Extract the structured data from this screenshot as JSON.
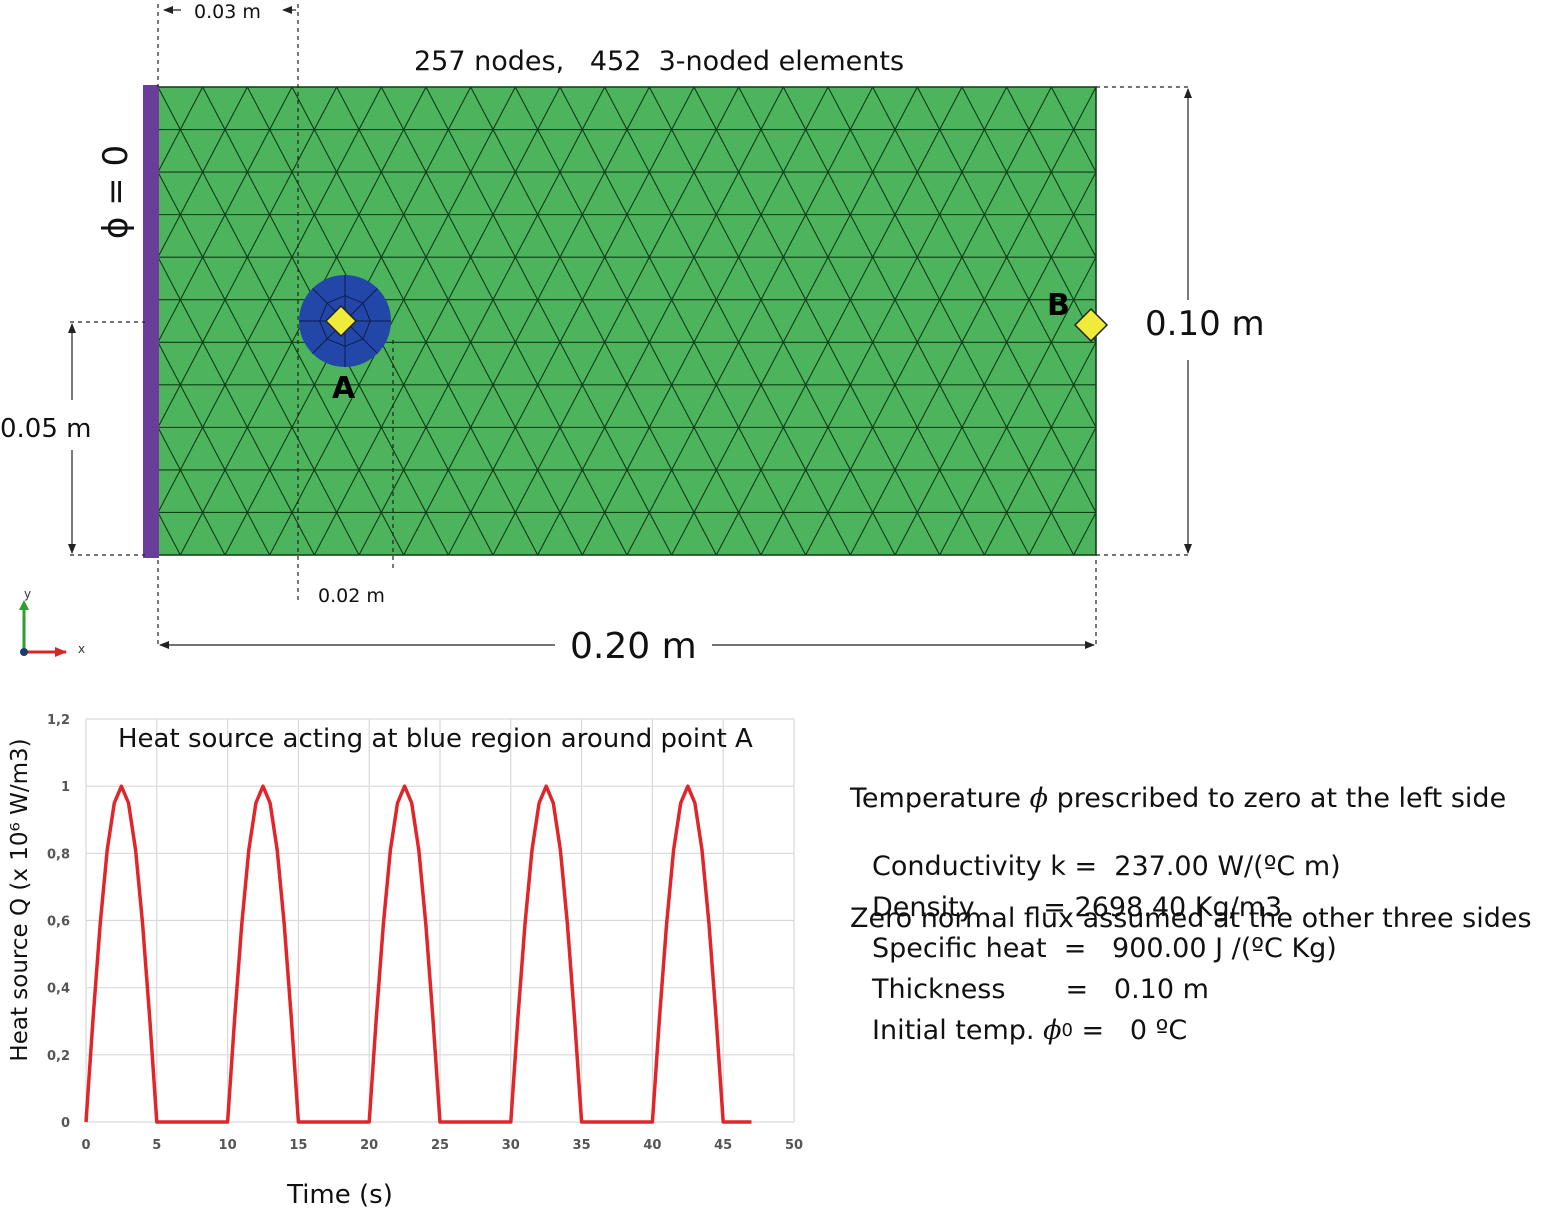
{
  "mesh_info": "257 nodes,   452  3-noded elements",
  "boundary_label": "ϕ = 0",
  "dimensions": {
    "top_offset": "0.03 m",
    "left_height": "0.05 m",
    "right_height": "0.10 m",
    "bottom_width": "0.20 m",
    "source_width": "0.02 m"
  },
  "points": {
    "a": "A",
    "b": "B"
  },
  "axes_triad": {
    "x": "x",
    "y": "y"
  },
  "colors": {
    "domain_fill": "#4db35c",
    "mesh_line": "#0d3d14",
    "boundary_bar": "#6a3d9a",
    "source_region": "#2347a8",
    "marker_fill": "#f0ea3a",
    "curve": "#e0262b",
    "grid": "#d9d9d9"
  },
  "notes": {
    "line1_pre": "Temperature ",
    "line1_sym": "ϕ",
    "line1_post": " prescribed to zero at the left side",
    "line2": "Zero normal flux assumed at the other three sides"
  },
  "properties": [
    {
      "label": "Conductivity k =",
      "value": "  237.00 W/(ºC m)"
    },
    {
      "label": "Density        =",
      "value": " 2698.40 Kg/m3"
    },
    {
      "label": "Specific heat  =",
      "value": "   900.00 J /(ºC Kg)"
    },
    {
      "label": "Thickness       =",
      "value": "   0.10 m"
    }
  ],
  "initial_temp": {
    "label_pre": "Initial temp. ",
    "sym": "ϕ",
    "sub": "0",
    "post": " =   0 ºC"
  },
  "chart_data": {
    "type": "line",
    "title": "Heat source acting at blue region around point A",
    "xlabel": "Time (s)",
    "ylabel": "Heat source Q (x 10⁶ W/m3)",
    "xlim": [
      0,
      50
    ],
    "ylim": [
      0,
      1.2
    ],
    "x_ticks": [
      "0",
      "5",
      "10",
      "15",
      "20",
      "25",
      "30",
      "35",
      "40",
      "45",
      "50"
    ],
    "y_ticks": [
      "0",
      "0,2",
      "0,4",
      "0,6",
      "0,8",
      "1",
      "1,2"
    ],
    "grid": true,
    "series": [
      {
        "x": [
          0,
          0.5,
          1,
          1.5,
          2,
          2.5,
          3,
          3.5,
          4,
          4.5,
          5,
          10,
          10.5,
          11,
          11.5,
          12,
          12.5,
          13,
          13.5,
          14,
          14.5,
          15,
          20,
          20.5,
          21,
          21.5,
          22,
          22.5,
          23,
          23.5,
          24,
          24.5,
          25,
          30,
          30.5,
          31,
          31.5,
          32,
          32.5,
          33,
          33.5,
          34,
          34.5,
          35,
          40,
          40.5,
          41,
          41.5,
          42,
          42.5,
          43,
          43.5,
          44,
          44.5,
          45,
          47
        ],
        "y": [
          0,
          0.31,
          0.59,
          0.81,
          0.95,
          1.0,
          0.95,
          0.81,
          0.59,
          0.31,
          0,
          0,
          0.31,
          0.59,
          0.81,
          0.95,
          1.0,
          0.95,
          0.81,
          0.59,
          0.31,
          0,
          0,
          0.31,
          0.59,
          0.81,
          0.95,
          1.0,
          0.95,
          0.81,
          0.59,
          0.31,
          0,
          0,
          0.31,
          0.59,
          0.81,
          0.95,
          1.0,
          0.95,
          0.81,
          0.59,
          0.31,
          0,
          0,
          0.31,
          0.59,
          0.81,
          0.95,
          1.0,
          0.95,
          0.81,
          0.59,
          0.31,
          0,
          0
        ]
      }
    ]
  }
}
